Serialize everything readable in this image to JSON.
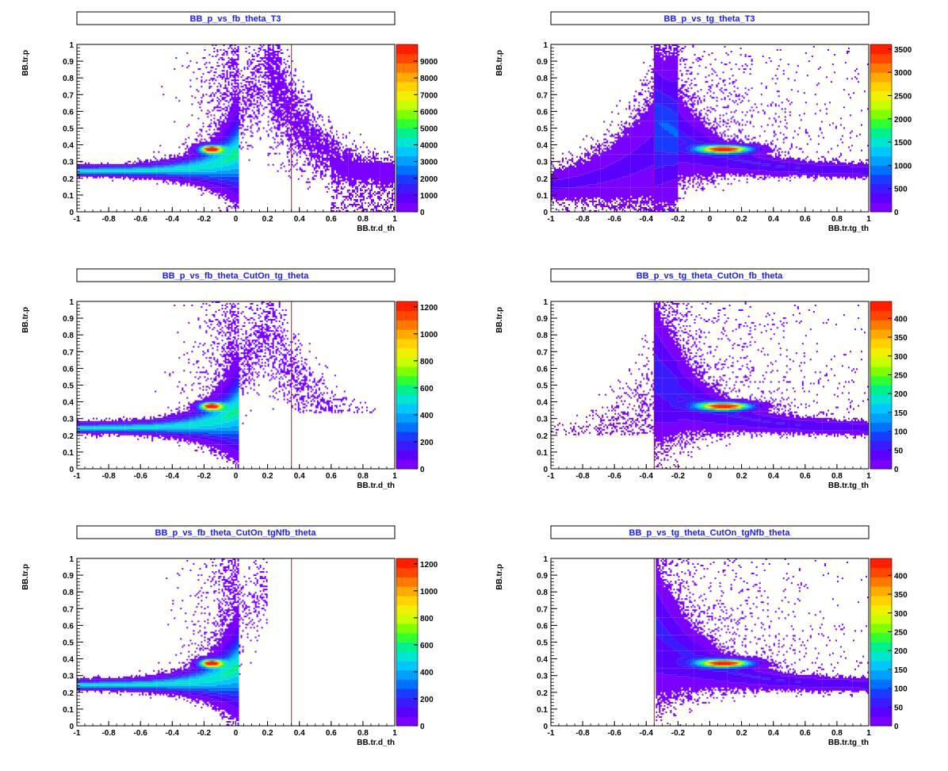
{
  "chart_data": [
    {
      "type": "heatmap",
      "title": "BB_p_vs_fb_theta_T3",
      "xlabel": "BB.tr.d_th",
      "ylabel": "BB.tr.p",
      "xlim": [
        -1,
        1
      ],
      "ylim": [
        0,
        1
      ],
      "x_ticks": [
        "-1",
        "-0.8",
        "-0.6",
        "-0.4",
        "-0.2",
        "0",
        "0.2",
        "0.4",
        "0.6",
        "0.8",
        "1"
      ],
      "y_ticks": [
        "0",
        "0.1",
        "0.2",
        "0.3",
        "0.4",
        "0.5",
        "0.6",
        "0.7",
        "0.8",
        "0.9",
        "1"
      ],
      "colorbar_max": 10000,
      "colorbar_ticks": [
        "0",
        "1000",
        "2000",
        "3000",
        "4000",
        "5000",
        "6000",
        "7000",
        "8000",
        "9000"
      ],
      "cut_line_x": 0.35,
      "distribution": "fb_full",
      "peak": {
        "x": -0.15,
        "y": 0.37
      }
    },
    {
      "type": "heatmap",
      "title": "BB_p_vs_tg_theta_T3",
      "xlabel": "BB.tr.tg_th",
      "ylabel": "BB.tr.p",
      "xlim": [
        -1,
        1
      ],
      "ylim": [
        0,
        1
      ],
      "x_ticks": [
        "-1",
        "-0.8",
        "-0.6",
        "-0.4",
        "-0.2",
        "0",
        "0.2",
        "0.4",
        "0.6",
        "0.8",
        "1"
      ],
      "y_ticks": [
        "0",
        "0.1",
        "0.2",
        "0.3",
        "0.4",
        "0.5",
        "0.6",
        "0.7",
        "0.8",
        "0.9",
        "1"
      ],
      "colorbar_max": 3600,
      "colorbar_ticks": [
        "0",
        "500",
        "1000",
        "1500",
        "2000",
        "2500",
        "3000",
        "3500"
      ],
      "cut_line_x": -0.35,
      "distribution": "tg_full",
      "peak": {
        "x": 0.1,
        "y": 0.37
      }
    },
    {
      "type": "heatmap",
      "title": "BB_p_vs_fb_theta_CutOn_tg_theta",
      "xlabel": "BB.tr.d_th",
      "ylabel": "BB.tr.p",
      "xlim": [
        -1,
        1
      ],
      "ylim": [
        0,
        1
      ],
      "x_ticks": [
        "-1",
        "-0.8",
        "-0.6",
        "-0.4",
        "-0.2",
        "0",
        "0.2",
        "0.4",
        "0.6",
        "0.8",
        "1"
      ],
      "y_ticks": [
        "0",
        "0.1",
        "0.2",
        "0.3",
        "0.4",
        "0.5",
        "0.6",
        "0.7",
        "0.8",
        "0.9",
        "1"
      ],
      "colorbar_max": 1240,
      "colorbar_ticks": [
        "0",
        "200",
        "400",
        "600",
        "800",
        "1000",
        "1200"
      ],
      "cut_line_x": 0.35,
      "distribution": "fb_cut",
      "peak": {
        "x": -0.15,
        "y": 0.38
      }
    },
    {
      "type": "heatmap",
      "title": "BB_p_vs_tg_theta_CutOn_fb_theta",
      "xlabel": "BB.tr.tg_th",
      "ylabel": "BB.tr.p",
      "xlim": [
        -1,
        1
      ],
      "ylim": [
        0,
        1
      ],
      "x_ticks": [
        "-1",
        "-0.8",
        "-0.6",
        "-0.4",
        "-0.2",
        "0",
        "0.2",
        "0.4",
        "0.6",
        "0.8",
        "1"
      ],
      "y_ticks": [
        "0",
        "0.1",
        "0.2",
        "0.3",
        "0.4",
        "0.5",
        "0.6",
        "0.7",
        "0.8",
        "0.9",
        "1"
      ],
      "colorbar_max": 445,
      "colorbar_ticks": [
        "0",
        "50",
        "100",
        "150",
        "200",
        "250",
        "300",
        "350",
        "400"
      ],
      "cut_line_x": -0.35,
      "distribution": "tg_cut",
      "peak": {
        "x": 0.1,
        "y": 0.37
      }
    },
    {
      "type": "heatmap",
      "title": "BB_p_vs_fb_theta_CutOn_tgNfb_theta",
      "xlabel": "BB.tr.d_th",
      "ylabel": "BB.tr.p",
      "xlim": [
        -1,
        1
      ],
      "ylim": [
        0,
        1
      ],
      "x_ticks": [
        "-1",
        "-0.8",
        "-0.6",
        "-0.4",
        "-0.2",
        "0",
        "0.2",
        "0.4",
        "0.6",
        "0.8",
        "1"
      ],
      "y_ticks": [
        "0",
        "0.1",
        "0.2",
        "0.3",
        "0.4",
        "0.5",
        "0.6",
        "0.7",
        "0.8",
        "0.9",
        "1"
      ],
      "colorbar_max": 1240,
      "colorbar_ticks": [
        "0",
        "200",
        "400",
        "600",
        "800",
        "1000",
        "1200"
      ],
      "cut_line_x": 0.35,
      "distribution": "fb_both",
      "peak": {
        "x": -0.15,
        "y": 0.38
      }
    },
    {
      "type": "heatmap",
      "title": "BB_p_vs_tg_theta_CutOn_tgNfb_theta",
      "xlabel": "BB.tr.tg_th",
      "ylabel": "BB.tr.p",
      "xlim": [
        -1,
        1
      ],
      "ylim": [
        0,
        1
      ],
      "x_ticks": [
        "-1",
        "-0.8",
        "-0.6",
        "-0.4",
        "-0.2",
        "0",
        "0.2",
        "0.4",
        "0.6",
        "0.8",
        "1"
      ],
      "y_ticks": [
        "0",
        "0.1",
        "0.2",
        "0.3",
        "0.4",
        "0.5",
        "0.6",
        "0.7",
        "0.8",
        "0.9",
        "1"
      ],
      "colorbar_max": 445,
      "colorbar_ticks": [
        "0",
        "50",
        "100",
        "150",
        "200",
        "250",
        "300",
        "350",
        "400"
      ],
      "cut_line_x": -0.35,
      "distribution": "tg_both",
      "peak": {
        "x": 0.1,
        "y": 0.37
      }
    }
  ],
  "colors": {
    "title_text": "#1a1aff",
    "cut_line": "#ff0000",
    "palette": [
      "#7a00ff",
      "#5a00ff",
      "#3a1aff",
      "#1a3aff",
      "#0070ff",
      "#00a0ff",
      "#00c8ff",
      "#00e6d2",
      "#00f08c",
      "#30ff30",
      "#80ff00",
      "#c8ff00",
      "#f0f000",
      "#ffd200",
      "#ffaa00",
      "#ff7800",
      "#ff4600",
      "#ff1e00"
    ]
  }
}
